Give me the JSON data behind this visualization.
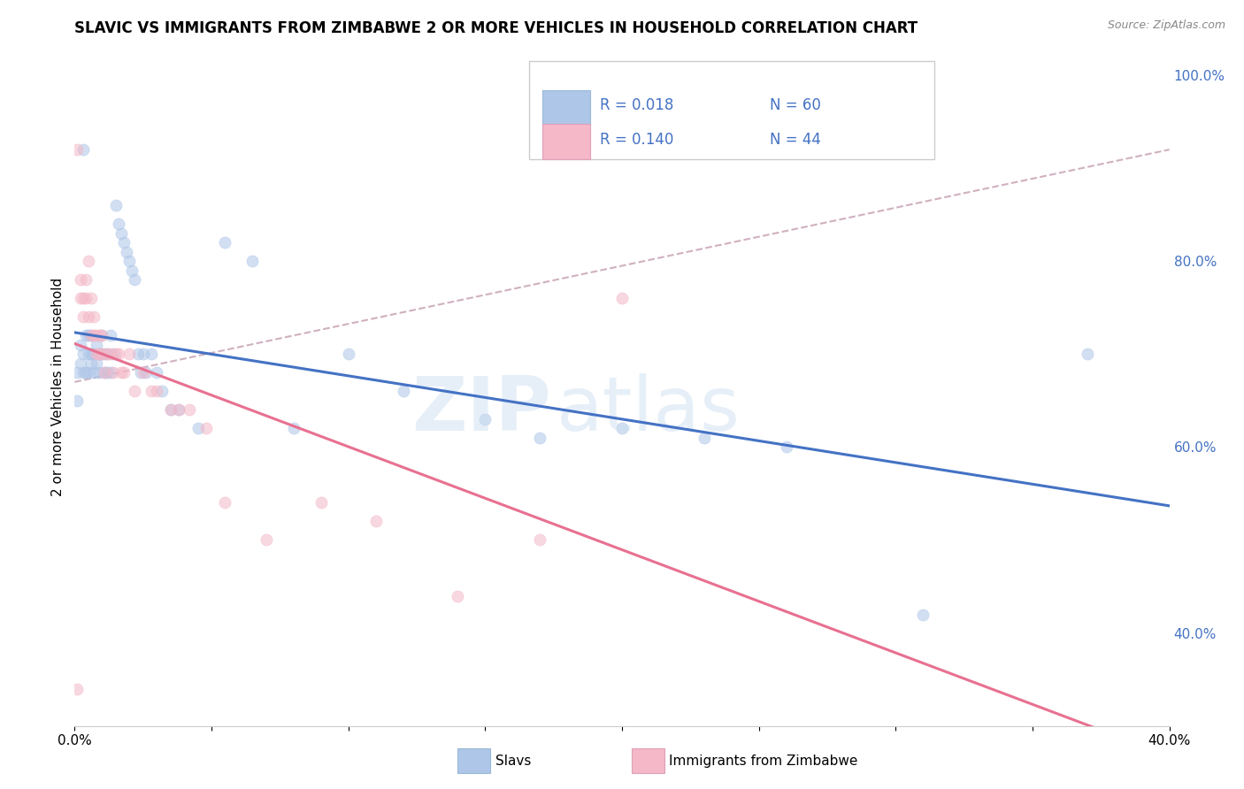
{
  "title": "SLAVIC VS IMMIGRANTS FROM ZIMBABWE 2 OR MORE VEHICLES IN HOUSEHOLD CORRELATION CHART",
  "source": "Source: ZipAtlas.com",
  "ylabel": "2 or more Vehicles in Household",
  "xmin": 0.0,
  "xmax": 0.4,
  "ymin": 0.3,
  "ymax": 1.03,
  "x_ticks": [
    0.0,
    0.05,
    0.1,
    0.15,
    0.2,
    0.25,
    0.3,
    0.35,
    0.4
  ],
  "y_ticks_right": [
    0.4,
    0.6,
    0.8,
    1.0
  ],
  "y_tick_labels_right": [
    "40.0%",
    "60.0%",
    "80.0%",
    "100.0%"
  ],
  "legend_entries": [
    {
      "label": "Slavs",
      "color": "#aec6e8"
    },
    {
      "label": "Immigrants from Zimbabwe",
      "color": "#f4b8c8"
    }
  ],
  "r_slavs": "0.018",
  "n_slavs": "60",
  "r_zimbabwe": "0.140",
  "n_zimbabwe": "44",
  "slavs_x": [
    0.001,
    0.001,
    0.002,
    0.002,
    0.003,
    0.003,
    0.003,
    0.004,
    0.004,
    0.005,
    0.005,
    0.005,
    0.006,
    0.006,
    0.006,
    0.007,
    0.007,
    0.008,
    0.008,
    0.009,
    0.009,
    0.01,
    0.01,
    0.011,
    0.011,
    0.012,
    0.012,
    0.013,
    0.013,
    0.014,
    0.015,
    0.016,
    0.017,
    0.018,
    0.019,
    0.02,
    0.021,
    0.022,
    0.023,
    0.024,
    0.025,
    0.026,
    0.028,
    0.03,
    0.032,
    0.035,
    0.038,
    0.045,
    0.055,
    0.065,
    0.08,
    0.1,
    0.12,
    0.15,
    0.17,
    0.2,
    0.23,
    0.26,
    0.31,
    0.37
  ],
  "slavs_y": [
    0.68,
    0.65,
    0.71,
    0.69,
    0.92,
    0.68,
    0.7,
    0.72,
    0.68,
    0.7,
    0.72,
    0.68,
    0.69,
    0.72,
    0.7,
    0.7,
    0.68,
    0.71,
    0.69,
    0.7,
    0.68,
    0.7,
    0.72,
    0.7,
    0.68,
    0.7,
    0.68,
    0.72,
    0.68,
    0.7,
    0.86,
    0.84,
    0.83,
    0.82,
    0.81,
    0.8,
    0.79,
    0.78,
    0.7,
    0.68,
    0.7,
    0.68,
    0.7,
    0.68,
    0.66,
    0.64,
    0.64,
    0.62,
    0.82,
    0.8,
    0.62,
    0.7,
    0.66,
    0.63,
    0.61,
    0.62,
    0.61,
    0.6,
    0.42,
    0.7
  ],
  "zimbabwe_x": [
    0.001,
    0.001,
    0.002,
    0.002,
    0.003,
    0.003,
    0.004,
    0.004,
    0.005,
    0.005,
    0.006,
    0.006,
    0.007,
    0.007,
    0.008,
    0.008,
    0.009,
    0.009,
    0.01,
    0.01,
    0.011,
    0.012,
    0.013,
    0.014,
    0.015,
    0.016,
    0.017,
    0.018,
    0.02,
    0.022,
    0.025,
    0.028,
    0.03,
    0.035,
    0.038,
    0.042,
    0.048,
    0.055,
    0.07,
    0.09,
    0.11,
    0.14,
    0.17,
    0.2
  ],
  "zimbabwe_y": [
    0.92,
    0.34,
    0.76,
    0.78,
    0.74,
    0.76,
    0.76,
    0.78,
    0.8,
    0.74,
    0.72,
    0.76,
    0.72,
    0.74,
    0.72,
    0.7,
    0.7,
    0.72,
    0.7,
    0.72,
    0.68,
    0.7,
    0.7,
    0.68,
    0.7,
    0.7,
    0.68,
    0.68,
    0.7,
    0.66,
    0.68,
    0.66,
    0.66,
    0.64,
    0.64,
    0.64,
    0.62,
    0.54,
    0.5,
    0.54,
    0.52,
    0.44,
    0.5,
    0.76
  ],
  "watermark_zip": "ZIP",
  "watermark_atlas": "atlas",
  "background_color": "#ffffff",
  "scatter_alpha": 0.55,
  "scatter_size": 90,
  "slavs_color": "#aec6e8",
  "slavs_line_color": "#4472c4",
  "zimbabwe_color": "#f4b8c8",
  "zimbabwe_line_color": "#e87090",
  "ref_line_color": "#d0b0c0",
  "grid_color": "#e8e8e8"
}
